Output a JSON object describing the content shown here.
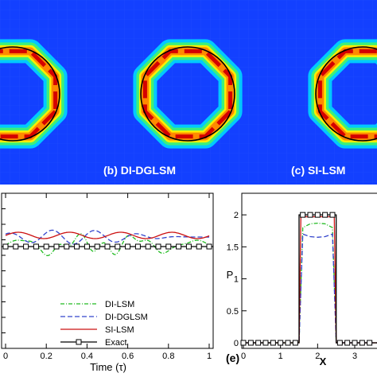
{
  "panels": {
    "b_caption": "(b) DI-DGLSM",
    "c_caption": "(c) SI-LSM",
    "e_label": "(e)"
  },
  "colors": {
    "field_background": "#1340ff",
    "ring_red": "#d40000",
    "ring_orange": "#ff8a00",
    "ring_yellow": "#ffee00",
    "ring_green": "#3ef07a",
    "ring_cyan": "#00d8ff",
    "interface_line": "#000000",
    "di_lsm": "#22bb22",
    "di_dglsm": "#3344cc",
    "si_lsm": "#cc1111",
    "exact": "#000000"
  },
  "chart_data": [
    {
      "type": "line",
      "title": "",
      "xlabel": "Time (τ)",
      "ylabel": "",
      "xlim": [
        0,
        1
      ],
      "xticks": [
        "0",
        "0.2",
        "0.4",
        "0.6",
        "0.8",
        "1"
      ],
      "legend_position": "bottom-left",
      "series": [
        {
          "name": "DI-LSM",
          "style": "dash-dot"
        },
        {
          "name": "DI-DGLSM",
          "style": "dashed"
        },
        {
          "name": "SI-LSM",
          "style": "solid"
        },
        {
          "name": "Exact",
          "style": "solid-square-markers"
        }
      ]
    },
    {
      "type": "line",
      "title": "",
      "xlabel": "X",
      "ylabel": "P",
      "ylim": [
        0,
        2.3
      ],
      "xlim": [
        0,
        3.6
      ],
      "yticks": [
        "0",
        "0.5",
        "1",
        "1.5",
        "2"
      ],
      "xticks": [
        "0",
        "1",
        "2",
        "3"
      ],
      "series": [
        {
          "name": "DI-LSM",
          "x": [
            0,
            1.5,
            1.6,
            1.8,
            2.0,
            2.2,
            2.4,
            2.5,
            3.6
          ],
          "y": [
            0,
            0,
            1.8,
            1.86,
            1.87,
            1.86,
            1.8,
            0,
            0
          ]
        },
        {
          "name": "DI-DGLSM",
          "x": [
            0,
            1.5,
            1.6,
            1.8,
            2.0,
            2.2,
            2.4,
            2.5,
            3.6
          ],
          "y": [
            0,
            0,
            1.7,
            1.66,
            1.65,
            1.66,
            1.7,
            0,
            0
          ]
        },
        {
          "name": "SI-LSM",
          "x": [
            0,
            1.5,
            1.55,
            2.0,
            2.45,
            2.5,
            3.6
          ],
          "y": [
            0,
            0,
            1.97,
            1.97,
            1.97,
            0,
            0
          ]
        },
        {
          "name": "Exact",
          "x": [
            0,
            1.5,
            1.5,
            2.5,
            2.5,
            3.6
          ],
          "y": [
            0,
            0,
            2,
            2,
            0,
            0
          ]
        }
      ]
    }
  ]
}
